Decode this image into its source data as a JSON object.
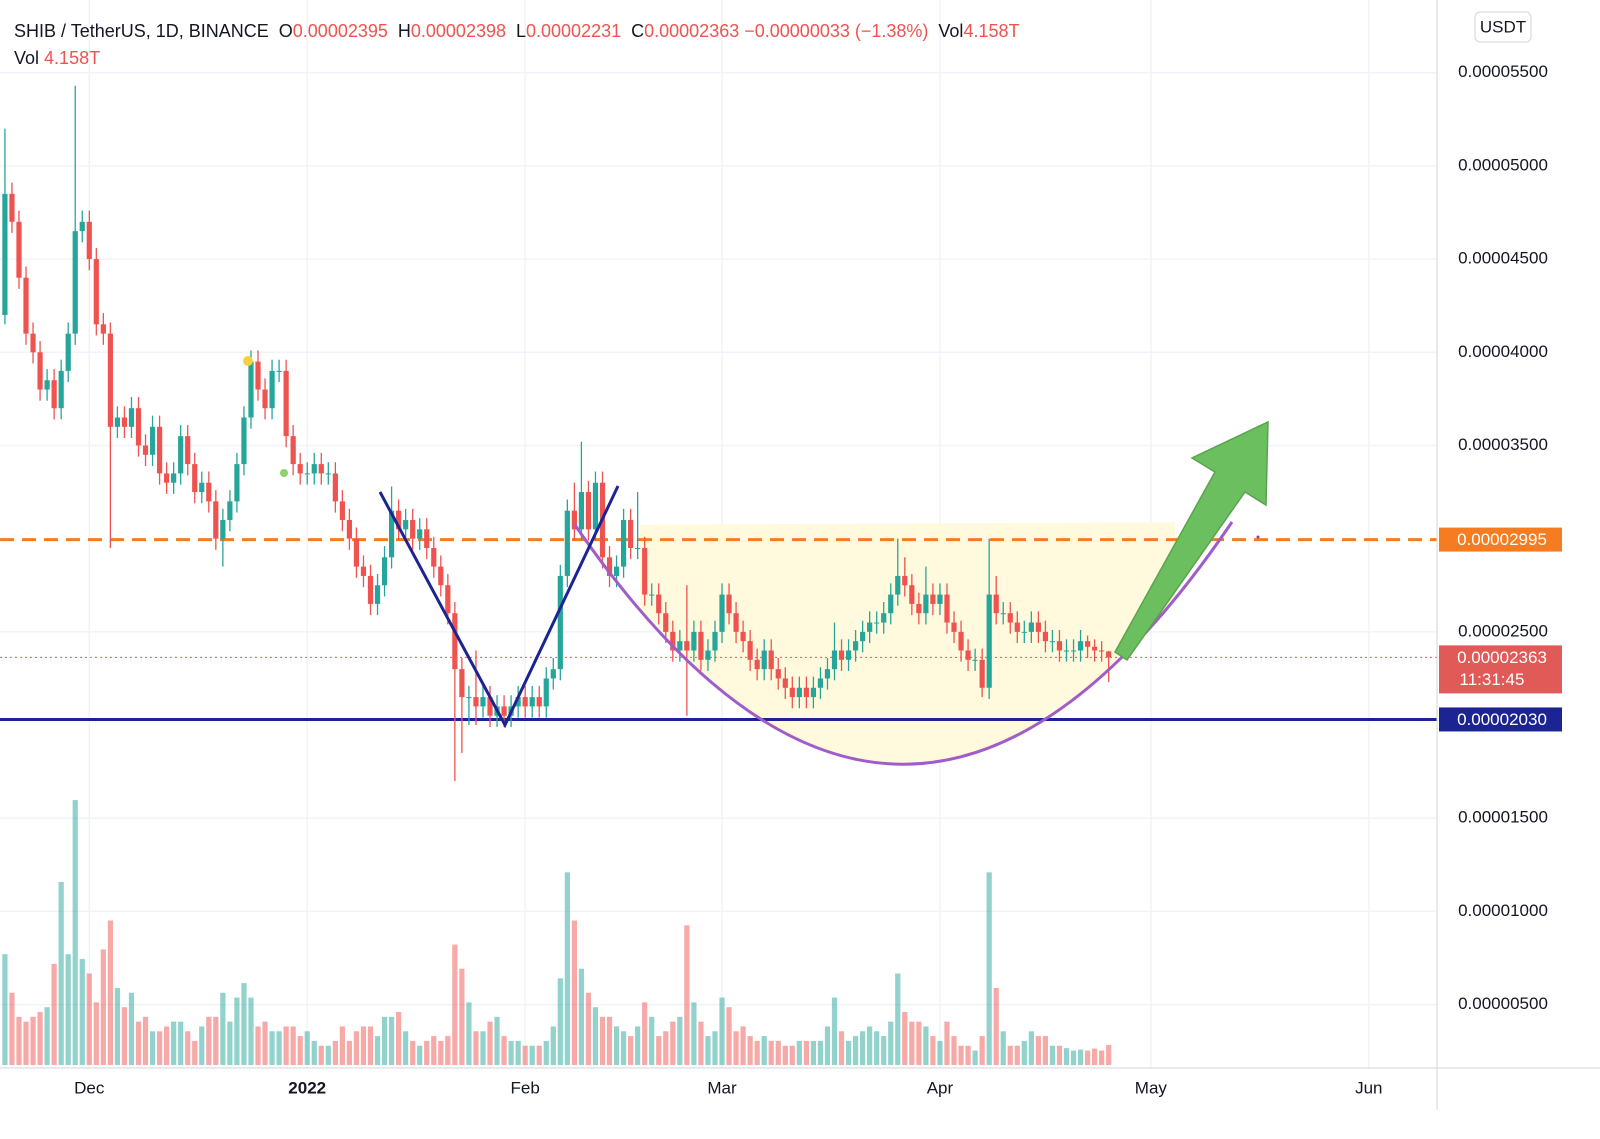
{
  "chart_data": {
    "type": "candlestick",
    "title": "SHIB / TetherUS, 1D, BINANCE",
    "legend": [
      {
        "key": "O",
        "value": "0.00002395"
      },
      {
        "key": "H",
        "value": "0.00002398"
      },
      {
        "key": "L",
        "value": "0.00002231"
      },
      {
        "key": "C",
        "value": "0.00002363"
      }
    ],
    "change": "−0.00000033 (−1.38%)",
    "volume_legend": {
      "name": "Vol",
      "value": "4.158T"
    },
    "currency": "USDT",
    "up_color": "#26a69a",
    "down_color": "#ef5350",
    "x": [
      0,
      1,
      2,
      3,
      4,
      5,
      6,
      7,
      8,
      9,
      10,
      11,
      12,
      13,
      14,
      15,
      16,
      17,
      18,
      19,
      20,
      21,
      22,
      23,
      24,
      25,
      26,
      27,
      28,
      29,
      30,
      31,
      32,
      33,
      34,
      35,
      36,
      37,
      38,
      39,
      40,
      41,
      42,
      43,
      44,
      45,
      46,
      47,
      48,
      49,
      50,
      51,
      52,
      53,
      54,
      55,
      56,
      57,
      58,
      59,
      60,
      61,
      62,
      63,
      64,
      65,
      66,
      67,
      68,
      69,
      70,
      71,
      72,
      73,
      74,
      75,
      76,
      77,
      78,
      79,
      80,
      81,
      82,
      83,
      84,
      85,
      86,
      87,
      88,
      89,
      90,
      91,
      92,
      93,
      94,
      95,
      96,
      97,
      98,
      99,
      100,
      101,
      102,
      103,
      104,
      105,
      106,
      107,
      108,
      109,
      110,
      111,
      112,
      113,
      114,
      115,
      116,
      117,
      118,
      119,
      120,
      121,
      122,
      123,
      124,
      125,
      126,
      127,
      128,
      129,
      130,
      131,
      132,
      133,
      134,
      135,
      136,
      137,
      138,
      139,
      140,
      141,
      142,
      143,
      144,
      145,
      146,
      147,
      148,
      149,
      150,
      151,
      152,
      153,
      154,
      155,
      156,
      157
    ],
    "open": [
      4.2e-05,
      4.85e-05,
      4.7e-05,
      4.4e-05,
      4.1e-05,
      4e-05,
      3.8e-05,
      3.85e-05,
      3.7e-05,
      3.9e-05,
      4.1e-05,
      4.65e-05,
      4.7e-05,
      4.5e-05,
      4.15e-05,
      4.1e-05,
      3.6e-05,
      3.65e-05,
      3.6e-05,
      3.7e-05,
      3.5e-05,
      3.45e-05,
      3.6e-05,
      3.35e-05,
      3.3e-05,
      3.35e-05,
      3.55e-05,
      3.4e-05,
      3.25e-05,
      3.3e-05,
      3.2e-05,
      3e-05,
      3.1e-05,
      3.2e-05,
      3.4e-05,
      3.65e-05,
      3.95e-05,
      3.8e-05,
      3.7e-05,
      3.9e-05,
      3.9e-05,
      3.55e-05,
      3.4e-05,
      3.35e-05,
      3.35e-05,
      3.4e-05,
      3.35e-05,
      3.35e-05,
      3.2e-05,
      3.1e-05,
      3e-05,
      2.85e-05,
      2.8e-05,
      2.65e-05,
      2.75e-05,
      2.9e-05,
      3.15e-05,
      3.05e-05,
      3.1e-05,
      3e-05,
      3.05e-05,
      2.95e-05,
      2.85e-05,
      2.75e-05,
      2.6e-05,
      2.3e-05,
      2.15e-05,
      2.15e-05,
      2.1e-05,
      2.15e-05,
      2.05e-05,
      2.1e-05,
      2.05e-05,
      2.1e-05,
      2.15e-05,
      2.1e-05,
      2.15e-05,
      2.1e-05,
      2.25e-05,
      2.3e-05,
      2.8e-05,
      3.15e-05,
      3.05e-05,
      3.25e-05,
      3.05e-05,
      3.3e-05,
      2.9e-05,
      2.8e-05,
      2.85e-05,
      3.1e-05,
      2.95e-05,
      2.95e-05,
      2.7e-05,
      2.7e-05,
      2.6e-05,
      2.5e-05,
      2.4e-05,
      2.45e-05,
      2.4e-05,
      2.5e-05,
      2.35e-05,
      2.4e-05,
      2.5e-05,
      2.7e-05,
      2.6e-05,
      2.5e-05,
      2.45e-05,
      2.35e-05,
      2.3e-05,
      2.4e-05,
      2.3e-05,
      2.25e-05,
      2.2e-05,
      2.15e-05,
      2.2e-05,
      2.15e-05,
      2.2e-05,
      2.25e-05,
      2.3e-05,
      2.4e-05,
      2.35e-05,
      2.4e-05,
      2.45e-05,
      2.5e-05,
      2.55e-05,
      2.55e-05,
      2.6e-05,
      2.7e-05,
      2.8e-05,
      2.75e-05,
      2.65e-05,
      2.6e-05,
      2.7e-05,
      2.65e-05,
      2.7e-05,
      2.55e-05,
      2.5e-05,
      2.4e-05,
      2.35e-05,
      2.35e-05,
      2.2e-05,
      2.7e-05,
      2.6e-05,
      2.6e-05,
      2.55e-05,
      2.5e-05,
      2.5e-05,
      2.55e-05,
      2.5e-05,
      2.45e-05,
      2.45e-05,
      2.4e-05,
      2.4e-05,
      2.4e-05,
      2.45e-05,
      2.42e-05,
      2.4e-05,
      2.395e-05
    ],
    "high": [
      5.2e-05,
      4.91e-05,
      4.76e-05,
      4.46e-05,
      4.16e-05,
      4.06e-05,
      3.91e-05,
      3.91e-05,
      3.96e-05,
      4.16e-05,
      5.43e-05,
      4.76e-05,
      4.76e-05,
      4.56e-05,
      4.21e-05,
      4.16e-05,
      3.71e-05,
      3.71e-05,
      3.76e-05,
      3.76e-05,
      3.56e-05,
      3.66e-05,
      3.66e-05,
      3.41e-05,
      3.41e-05,
      3.61e-05,
      3.61e-05,
      3.46e-05,
      3.36e-05,
      3.36e-05,
      3.26e-05,
      3.16e-05,
      3.26e-05,
      3.46e-05,
      3.71e-05,
      4.01e-05,
      4.01e-05,
      3.86e-05,
      3.96e-05,
      3.96e-05,
      3.96e-05,
      3.61e-05,
      3.46e-05,
      3.41e-05,
      3.46e-05,
      3.46e-05,
      3.41e-05,
      3.41e-05,
      3.26e-05,
      3.16e-05,
      3.06e-05,
      2.91e-05,
      2.86e-05,
      2.81e-05,
      2.96e-05,
      3.28e-05,
      3.21e-05,
      3.16e-05,
      3.16e-05,
      3.11e-05,
      3.11e-05,
      3.01e-05,
      2.91e-05,
      2.81e-05,
      2.66e-05,
      2.36e-05,
      2.21e-05,
      2.4e-05,
      2.21e-05,
      2.21e-05,
      2.16e-05,
      2.16e-05,
      2.16e-05,
      2.21e-05,
      2.21e-05,
      2.21e-05,
      2.21e-05,
      2.31e-05,
      2.36e-05,
      2.86e-05,
      3.21e-05,
      3.3e-05,
      3.52e-05,
      3.31e-05,
      3.36e-05,
      3.36e-05,
      2.96e-05,
      2.91e-05,
      3.16e-05,
      3.16e-05,
      3.25e-05,
      3.01e-05,
      2.76e-05,
      2.76e-05,
      2.66e-05,
      2.56e-05,
      2.51e-05,
      2.75e-05,
      2.56e-05,
      2.56e-05,
      2.46e-05,
      2.56e-05,
      2.76e-05,
      2.76e-05,
      2.66e-05,
      2.56e-05,
      2.51e-05,
      2.41e-05,
      2.46e-05,
      2.46e-05,
      2.36e-05,
      2.31e-05,
      2.26e-05,
      2.26e-05,
      2.26e-05,
      2.26e-05,
      2.31e-05,
      2.36e-05,
      2.55e-05,
      2.46e-05,
      2.46e-05,
      2.51e-05,
      2.56e-05,
      2.61e-05,
      2.61e-05,
      2.66e-05,
      2.76e-05,
      3e-05,
      2.9e-05,
      2.81e-05,
      2.71e-05,
      2.85e-05,
      2.76e-05,
      2.76e-05,
      2.76e-05,
      2.61e-05,
      2.56e-05,
      2.46e-05,
      2.41e-05,
      2.41e-05,
      3e-05,
      2.8e-05,
      2.66e-05,
      2.66e-05,
      2.61e-05,
      2.56e-05,
      2.61e-05,
      2.61e-05,
      2.56e-05,
      2.51e-05,
      2.51e-05,
      2.46e-05,
      2.46e-05,
      2.51e-05,
      2.48e-05,
      2.46e-05,
      2.45e-05,
      2.398e-05
    ],
    "low": [
      4.15e-05,
      4.64e-05,
      4.34e-05,
      4.04e-05,
      3.94e-05,
      3.74e-05,
      3.74e-05,
      3.64e-05,
      3.64e-05,
      3.84e-05,
      4.04e-05,
      4.59e-05,
      4.44e-05,
      4.09e-05,
      4.04e-05,
      2.95e-05,
      3.54e-05,
      3.54e-05,
      3.54e-05,
      3.44e-05,
      3.39e-05,
      3.39e-05,
      3.29e-05,
      3.24e-05,
      3.24e-05,
      3.29e-05,
      3.34e-05,
      3.19e-05,
      3.19e-05,
      3.14e-05,
      2.94e-05,
      2.85e-05,
      3.04e-05,
      3.14e-05,
      3.34e-05,
      3.59e-05,
      3.74e-05,
      3.64e-05,
      3.64e-05,
      3.84e-05,
      3.49e-05,
      3.34e-05,
      3.29e-05,
      3.29e-05,
      3.29e-05,
      3.29e-05,
      3.29e-05,
      3.14e-05,
      3.04e-05,
      2.94e-05,
      2.79e-05,
      2.74e-05,
      2.59e-05,
      2.59e-05,
      2.69e-05,
      2.84e-05,
      2.99e-05,
      2.99e-05,
      2.94e-05,
      2.94e-05,
      2.89e-05,
      2.79e-05,
      2.69e-05,
      2.54e-05,
      1.7e-05,
      1.85e-05,
      2e-05,
      2e-05,
      2.04e-05,
      1.99e-05,
      1.99e-05,
      1.99e-05,
      1.99e-05,
      2.04e-05,
      2.04e-05,
      2.04e-05,
      2.04e-05,
      2.04e-05,
      2.19e-05,
      2.24e-05,
      2.74e-05,
      2.99e-05,
      2.99e-05,
      2.99e-05,
      2.99e-05,
      2.84e-05,
      2.74e-05,
      2.74e-05,
      2.79e-05,
      2.89e-05,
      2.89e-05,
      2.64e-05,
      2.64e-05,
      2.54e-05,
      2.44e-05,
      2.34e-05,
      2.34e-05,
      2.05e-05,
      2.34e-05,
      2.29e-05,
      2.29e-05,
      2.34e-05,
      2.44e-05,
      2.54e-05,
      2.44e-05,
      2.39e-05,
      2.29e-05,
      2.24e-05,
      2.24e-05,
      2.24e-05,
      2.19e-05,
      2.14e-05,
      2.09e-05,
      2.09e-05,
      2.09e-05,
      2.09e-05,
      2.14e-05,
      2.19e-05,
      2.24e-05,
      2.29e-05,
      2.29e-05,
      2.34e-05,
      2.39e-05,
      2.44e-05,
      2.49e-05,
      2.49e-05,
      2.54e-05,
      2.64e-05,
      2.69e-05,
      2.59e-05,
      2.54e-05,
      2.54e-05,
      2.59e-05,
      2.59e-05,
      2.49e-05,
      2.44e-05,
      2.34e-05,
      2.29e-05,
      2.29e-05,
      2.15e-05,
      2.14e-05,
      2.54e-05,
      2.54e-05,
      2.49e-05,
      2.44e-05,
      2.44e-05,
      2.44e-05,
      2.44e-05,
      2.39e-05,
      2.39e-05,
      2.34e-05,
      2.34e-05,
      2.34e-05,
      2.34e-05,
      2.36e-05,
      2.34e-05,
      2.34e-05,
      2.231e-05
    ],
    "close": [
      4.85e-05,
      4.7e-05,
      4.4e-05,
      4.1e-05,
      4e-05,
      3.8e-05,
      3.85e-05,
      3.7e-05,
      3.9e-05,
      4.1e-05,
      4.65e-05,
      4.7e-05,
      4.5e-05,
      4.15e-05,
      4.1e-05,
      3.6e-05,
      3.65e-05,
      3.6e-05,
      3.7e-05,
      3.5e-05,
      3.45e-05,
      3.6e-05,
      3.35e-05,
      3.3e-05,
      3.35e-05,
      3.55e-05,
      3.4e-05,
      3.25e-05,
      3.3e-05,
      3.2e-05,
      3e-05,
      3.1e-05,
      3.2e-05,
      3.4e-05,
      3.65e-05,
      3.95e-05,
      3.8e-05,
      3.7e-05,
      3.9e-05,
      3.9e-05,
      3.55e-05,
      3.4e-05,
      3.35e-05,
      3.35e-05,
      3.4e-05,
      3.35e-05,
      3.35e-05,
      3.2e-05,
      3.1e-05,
      3e-05,
      2.85e-05,
      2.8e-05,
      2.65e-05,
      2.75e-05,
      2.9e-05,
      3.15e-05,
      3.05e-05,
      3.1e-05,
      3e-05,
      3.05e-05,
      2.95e-05,
      2.85e-05,
      2.75e-05,
      2.6e-05,
      2.3e-05,
      2.15e-05,
      2.15e-05,
      2.1e-05,
      2.15e-05,
      2.05e-05,
      2.1e-05,
      2.05e-05,
      2.1e-05,
      2.15e-05,
      2.1e-05,
      2.15e-05,
      2.1e-05,
      2.25e-05,
      2.3e-05,
      2.8e-05,
      3.15e-05,
      3.05e-05,
      3.25e-05,
      3.05e-05,
      3.3e-05,
      2.9e-05,
      2.8e-05,
      2.85e-05,
      3.1e-05,
      2.95e-05,
      2.95e-05,
      2.7e-05,
      2.7e-05,
      2.6e-05,
      2.5e-05,
      2.4e-05,
      2.45e-05,
      2.4e-05,
      2.5e-05,
      2.35e-05,
      2.4e-05,
      2.5e-05,
      2.7e-05,
      2.6e-05,
      2.5e-05,
      2.45e-05,
      2.35e-05,
      2.3e-05,
      2.4e-05,
      2.3e-05,
      2.25e-05,
      2.2e-05,
      2.15e-05,
      2.2e-05,
      2.15e-05,
      2.2e-05,
      2.25e-05,
      2.3e-05,
      2.4e-05,
      2.35e-05,
      2.4e-05,
      2.45e-05,
      2.5e-05,
      2.55e-05,
      2.55e-05,
      2.6e-05,
      2.7e-05,
      2.8e-05,
      2.75e-05,
      2.65e-05,
      2.6e-05,
      2.7e-05,
      2.65e-05,
      2.7e-05,
      2.55e-05,
      2.5e-05,
      2.4e-05,
      2.35e-05,
      2.35e-05,
      2.2e-05,
      2.7e-05,
      2.6e-05,
      2.6e-05,
      2.55e-05,
      2.5e-05,
      2.5e-05,
      2.55e-05,
      2.5e-05,
      2.45e-05,
      2.45e-05,
      2.4e-05,
      2.4e-05,
      2.4e-05,
      2.45e-05,
      2.42e-05,
      2.4e-05,
      2.395e-05,
      2.363e-05
    ],
    "volume": [
      23,
      15,
      10,
      9,
      10,
      11,
      12,
      21,
      38,
      23,
      55,
      22,
      19,
      13,
      24,
      30,
      16,
      12,
      15,
      9,
      10,
      7,
      7,
      8,
      9,
      9,
      7,
      5,
      8,
      10,
      10,
      15,
      9,
      14,
      17,
      14,
      8,
      9,
      7,
      7,
      8,
      8,
      6,
      7,
      5,
      4,
      4,
      5,
      8,
      5,
      7,
      8,
      8,
      6,
      10,
      10,
      11,
      7,
      5,
      4,
      5,
      6,
      5,
      6,
      25,
      20,
      13,
      7,
      7,
      9,
      10,
      6,
      5,
      5,
      4,
      4,
      4,
      5,
      8,
      18,
      40,
      30,
      20,
      15,
      12,
      10,
      10,
      8,
      7,
      6,
      8,
      13,
      10,
      6,
      7,
      9,
      10,
      29,
      13,
      9,
      6,
      7,
      14,
      12,
      7,
      8,
      6,
      5,
      6,
      5,
      5,
      4,
      4,
      5,
      5,
      5,
      5,
      8,
      14,
      7,
      5,
      6,
      7,
      8,
      7,
      6,
      9,
      19,
      11,
      9,
      9,
      8,
      6,
      5,
      9,
      6,
      4,
      4,
      3,
      6,
      40,
      16,
      7,
      4,
      4,
      5,
      7,
      6,
      6,
      4,
      4,
      3.5,
      3,
      3.2,
      3,
      3.4,
      3,
      4.158
    ],
    "volume_lim": [
      0,
      60
    ],
    "xlim": [
      -0.7,
      203.7
    ],
    "xticks": [
      {
        "value": 12,
        "label": "Dec"
      },
      {
        "value": 43,
        "label": "2022"
      },
      {
        "value": 74,
        "label": "Feb"
      },
      {
        "value": 102,
        "label": "Mar"
      },
      {
        "value": 133,
        "label": "Apr"
      },
      {
        "value": 163,
        "label": "May"
      },
      {
        "value": 194,
        "label": "Jun"
      }
    ],
    "ylim": [
      1.6e-06,
      5.89e-05
    ],
    "yticks": [
      {
        "value": 5.5e-05,
        "label": "0.00005500"
      },
      {
        "value": 5e-05,
        "label": "0.00005000"
      },
      {
        "value": 4.5e-05,
        "label": "0.00004500"
      },
      {
        "value": 4e-05,
        "label": "0.00004000"
      },
      {
        "value": 3.5e-05,
        "label": "0.00003500"
      },
      {
        "value": 2.5e-05,
        "label": "0.00002500"
      },
      {
        "value": 1.5e-05,
        "label": "0.00001500"
      },
      {
        "value": 1e-05,
        "label": "0.00001000"
      },
      {
        "value": 5e-06,
        "label": "0.00000500"
      }
    ],
    "grid": true,
    "levels": [
      {
        "value": 2.995e-05,
        "label": "0.00002995",
        "color": "#f57c20",
        "style": "dashed"
      },
      {
        "value": 2.03e-05,
        "label": "0.00002030",
        "color": "#1c2494",
        "style": "solid"
      }
    ],
    "last_price": {
      "value": 2.363e-05,
      "label": "0.00002363",
      "countdown": "11:31:45",
      "color": "#e05a57"
    }
  }
}
